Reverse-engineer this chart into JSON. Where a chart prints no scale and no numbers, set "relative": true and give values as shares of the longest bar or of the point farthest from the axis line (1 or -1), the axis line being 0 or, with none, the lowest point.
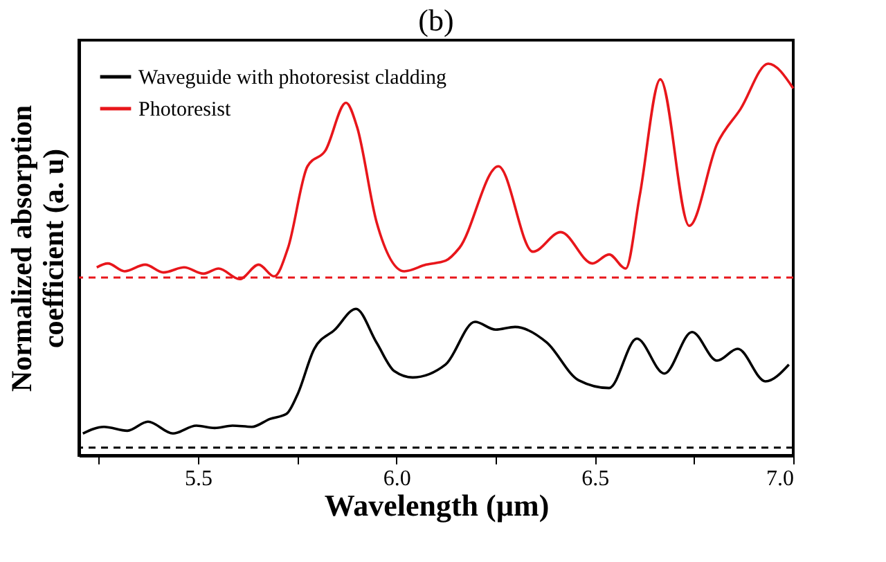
{
  "chart_data": {
    "type": "line",
    "title": "(b)",
    "xlabel": "Wavelength (µm)",
    "ylabel": "Normalized absorption coefficient (a. u)",
    "relative": true,
    "xlim": [
      5.2,
      7.0
    ],
    "xticks": [
      {
        "value": 5.25,
        "label": null
      },
      5.5,
      {
        "value": 5.75,
        "label": null
      },
      {
        "value": 6.0,
        "label": "6.0"
      },
      {
        "value": 6.25,
        "label": null
      },
      6.5,
      {
        "value": 6.75,
        "label": null
      },
      {
        "value": 7.0,
        "label": "7.0"
      }
    ],
    "legend": "top left",
    "grid": false,
    "line_style": "solid",
    "marker": "none",
    "series": [
      {
        "name": "Waveguide with photoresist cladding",
        "color": "#000000",
        "x": [
          5.21,
          5.263,
          5.322,
          5.374,
          5.437,
          5.496,
          5.542,
          5.587,
          5.636,
          5.681,
          5.723,
          5.751,
          5.793,
          5.845,
          5.898,
          5.95,
          5.995,
          6.041,
          6.124,
          6.198,
          6.25,
          6.299,
          6.379,
          6.459,
          6.536,
          6.606,
          6.675,
          6.745,
          6.808,
          6.86,
          6.93,
          6.989
        ],
        "values": [
          0.056,
          0.073,
          0.063,
          0.086,
          0.056,
          0.076,
          0.07,
          0.076,
          0.073,
          0.093,
          0.106,
          0.156,
          0.272,
          0.321,
          0.374,
          0.288,
          0.215,
          0.199,
          0.232,
          0.341,
          0.321,
          0.328,
          0.288,
          0.192,
          0.172,
          0.298,
          0.209,
          0.315,
          0.242,
          0.272,
          0.189,
          0.232
        ]
      },
      {
        "name": "Photoresist",
        "color": "#e8161b",
        "x": [
          5.245,
          5.273,
          5.315,
          5.367,
          5.413,
          5.465,
          5.514,
          5.552,
          5.605,
          5.653,
          5.692,
          5.727,
          5.776,
          5.821,
          5.873,
          5.901,
          5.95,
          6.02,
          6.075,
          6.124,
          6.159,
          6.257,
          6.344,
          6.414,
          6.494,
          6.536,
          6.578,
          6.613,
          6.665,
          6.738,
          6.808,
          6.867,
          6.937,
          7.0
        ],
        "values": [
          0.48,
          0.49,
          0.47,
          0.487,
          0.467,
          0.48,
          0.464,
          0.477,
          0.45,
          0.487,
          0.457,
          0.53,
          0.738,
          0.778,
          0.9,
          0.838,
          0.596,
          0.47,
          0.487,
          0.497,
          0.53,
          0.738,
          0.52,
          0.57,
          0.49,
          0.513,
          0.477,
          0.662,
          0.96,
          0.586,
          0.795,
          0.884,
          1.0,
          0.937
        ]
      }
    ],
    "ref_lines": [
      {
        "axis": "y",
        "value": 0.454,
        "color": "#e8161b",
        "line_style": "dashed",
        "label": null
      },
      {
        "axis": "y",
        "value": 0.02,
        "color": "#000000",
        "line_style": "dashed",
        "label": null
      }
    ]
  }
}
